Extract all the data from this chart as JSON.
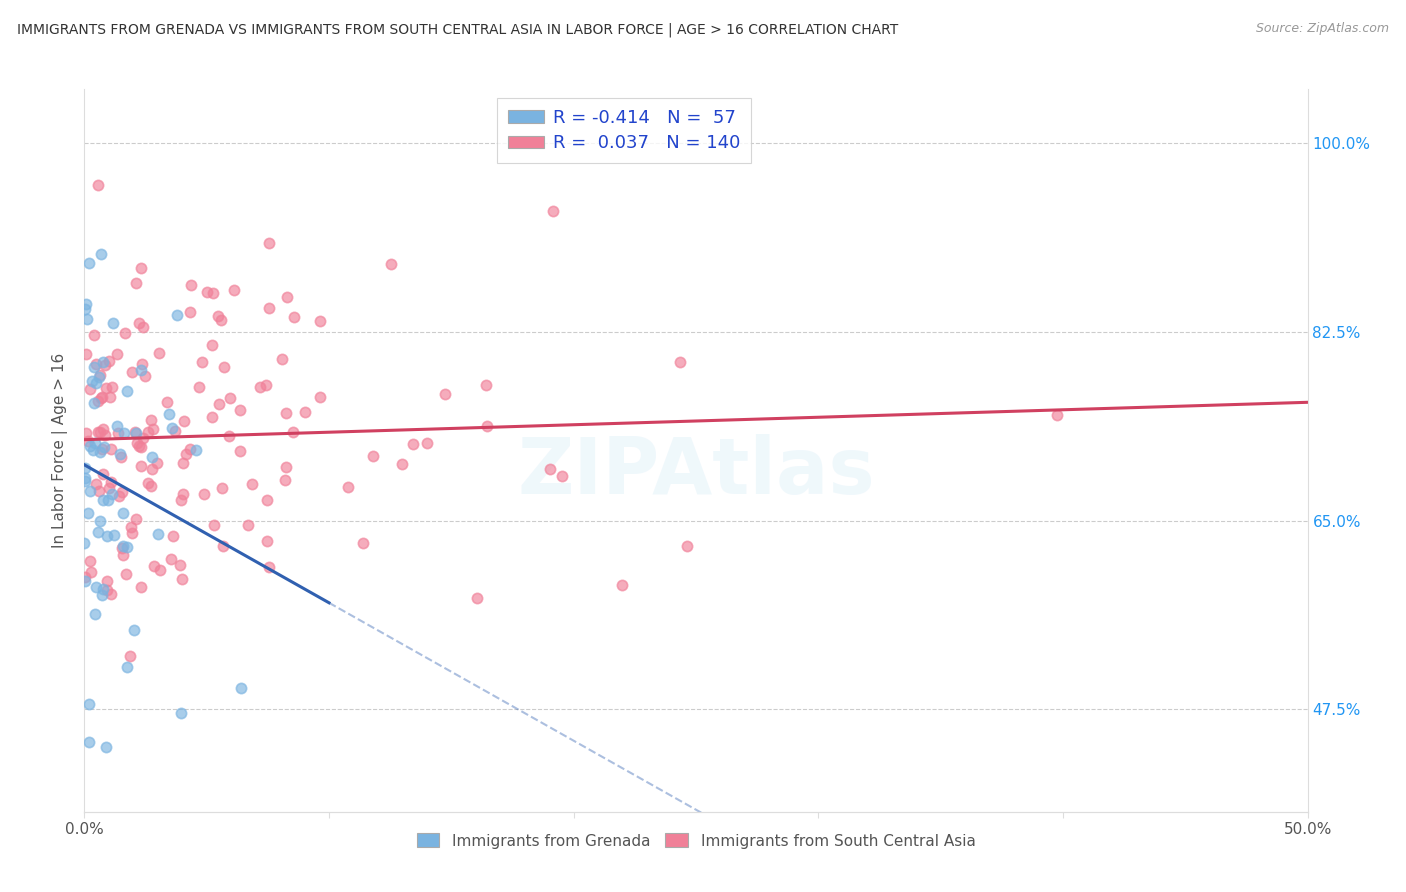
{
  "title": "IMMIGRANTS FROM GRENADA VS IMMIGRANTS FROM SOUTH CENTRAL ASIA IN LABOR FORCE | AGE > 16 CORRELATION CHART",
  "source": "Source: ZipAtlas.com",
  "ylabel": "In Labor Force | Age > 16",
  "legend_grenada": {
    "R": "-0.414",
    "N": "57"
  },
  "legend_sca": {
    "R": "0.037",
    "N": "140"
  },
  "R_grenada": -0.414,
  "N_grenada": 57,
  "R_sca": 0.037,
  "N_sca": 140,
  "background_color": "#ffffff",
  "grid_color": "#cccccc",
  "watermark": "ZIPAtlas",
  "dot_size": 55,
  "dot_alpha": 0.65,
  "grenada_dot_color": "#7ab3e0",
  "sca_dot_color": "#f08098",
  "grenada_line_color": "#3060b0",
  "sca_line_color": "#d04060",
  "legend_text_color": "#2244cc",
  "right_tick_color": "#2196F3",
  "x_min": 0.0,
  "x_max": 0.5,
  "y_min": 0.38,
  "y_max": 1.05,
  "y_ticks": [
    0.475,
    0.65,
    0.825,
    1.0
  ],
  "y_tick_labels": [
    "47.5%",
    "65.0%",
    "82.5%",
    "100.0%"
  ]
}
